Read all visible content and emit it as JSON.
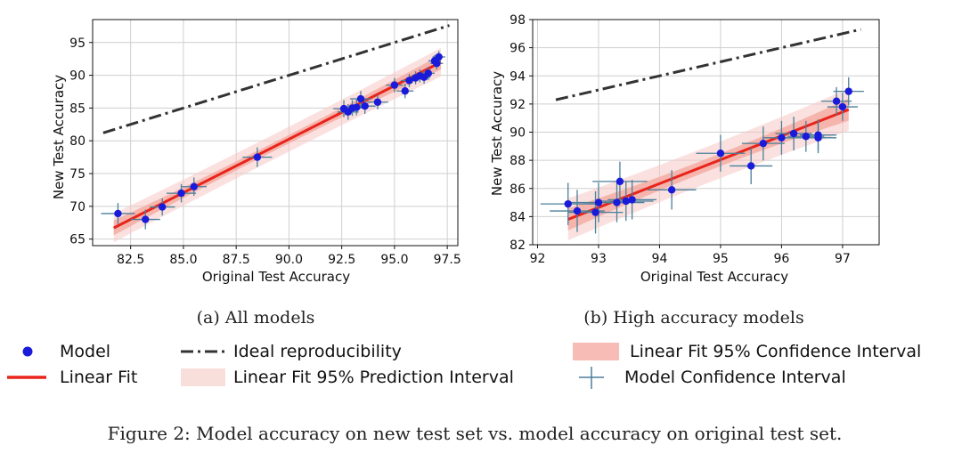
{
  "chart_data": [
    {
      "type": "scatter",
      "caption": "(a) All models",
      "xlabel": "Original Test Accuracy",
      "ylabel": "New Test Accuracy",
      "xlim": [
        80.7,
        98.0
      ],
      "ylim": [
        64.0,
        98.5
      ],
      "xticks": [
        "82.5",
        "85.0",
        "87.5",
        "90.0",
        "92.5",
        "95.0",
        "97.5"
      ],
      "yticks": [
        "65",
        "70",
        "75",
        "80",
        "85",
        "90",
        "95"
      ],
      "grid": true,
      "ideal_line": {
        "x": [
          81.2,
          97.6
        ],
        "y": [
          81.2,
          97.6
        ]
      },
      "linear_fit": {
        "x": [
          81.7,
          97.2
        ],
        "y": [
          66.7,
          92.0
        ]
      },
      "points": [
        {
          "x": 81.9,
          "y": 68.9,
          "xerr": 0.8,
          "yerr": 1.6
        },
        {
          "x": 83.2,
          "y": 68.0,
          "xerr": 0.7,
          "yerr": 1.5
        },
        {
          "x": 84.0,
          "y": 69.9,
          "xerr": 0.6,
          "yerr": 1.3
        },
        {
          "x": 84.9,
          "y": 72.0,
          "xerr": 0.7,
          "yerr": 1.4
        },
        {
          "x": 85.5,
          "y": 73.0,
          "xerr": 0.6,
          "yerr": 1.4
        },
        {
          "x": 88.5,
          "y": 77.5,
          "xerr": 0.7,
          "yerr": 1.5
        },
        {
          "x": 92.6,
          "y": 84.9,
          "xerr": 0.5,
          "yerr": 1.3
        },
        {
          "x": 92.8,
          "y": 84.4,
          "xerr": 0.5,
          "yerr": 1.2
        },
        {
          "x": 93.0,
          "y": 85.0,
          "xerr": 0.5,
          "yerr": 1.2
        },
        {
          "x": 93.2,
          "y": 85.1,
          "xerr": 0.5,
          "yerr": 1.2
        },
        {
          "x": 93.4,
          "y": 86.4,
          "xerr": 0.5,
          "yerr": 1.2
        },
        {
          "x": 93.6,
          "y": 85.3,
          "xerr": 0.5,
          "yerr": 1.2
        },
        {
          "x": 94.2,
          "y": 85.9,
          "xerr": 0.5,
          "yerr": 1.1
        },
        {
          "x": 95.0,
          "y": 88.5,
          "xerr": 0.4,
          "yerr": 1.1
        },
        {
          "x": 95.5,
          "y": 87.6,
          "xerr": 0.4,
          "yerr": 1.1
        },
        {
          "x": 95.7,
          "y": 89.2,
          "xerr": 0.4,
          "yerr": 1.0
        },
        {
          "x": 96.0,
          "y": 89.6,
          "xerr": 0.4,
          "yerr": 1.0
        },
        {
          "x": 96.2,
          "y": 89.9,
          "xerr": 0.4,
          "yerr": 1.0
        },
        {
          "x": 96.4,
          "y": 89.7,
          "xerr": 0.3,
          "yerr": 1.0
        },
        {
          "x": 96.6,
          "y": 90.3,
          "xerr": 0.3,
          "yerr": 1.0
        },
        {
          "x": 96.9,
          "y": 92.2,
          "xerr": 0.3,
          "yerr": 0.9
        },
        {
          "x": 97.0,
          "y": 91.8,
          "xerr": 0.3,
          "yerr": 0.9
        },
        {
          "x": 97.1,
          "y": 92.8,
          "xerr": 0.3,
          "yerr": 0.9
        }
      ]
    },
    {
      "type": "scatter",
      "caption": "(b) High accuracy models",
      "xlabel": "Original Test Accuracy",
      "ylabel": "New Test Accuracy",
      "xlim": [
        91.92,
        97.6
      ],
      "ylim": [
        82.0,
        98.0
      ],
      "xticks": [
        "92",
        "93",
        "94",
        "95",
        "96",
        "97"
      ],
      "yticks": [
        "82",
        "84",
        "86",
        "88",
        "90",
        "92",
        "94",
        "96",
        "98"
      ],
      "grid": true,
      "ideal_line": {
        "x": [
          92.3,
          97.3
        ],
        "y": [
          92.3,
          97.3
        ]
      },
      "linear_fit": {
        "x": [
          92.5,
          97.1
        ],
        "y": [
          83.8,
          91.6
        ]
      },
      "points": [
        {
          "x": 92.5,
          "y": 84.9,
          "xerr": 0.45,
          "yerr": 1.5
        },
        {
          "x": 92.65,
          "y": 84.4,
          "xerr": 0.45,
          "yerr": 1.5
        },
        {
          "x": 92.95,
          "y": 84.3,
          "xerr": 0.45,
          "yerr": 1.5
        },
        {
          "x": 93.0,
          "y": 85.0,
          "xerr": 0.45,
          "yerr": 1.4
        },
        {
          "x": 93.3,
          "y": 85.0,
          "xerr": 0.45,
          "yerr": 1.4
        },
        {
          "x": 93.35,
          "y": 86.5,
          "xerr": 0.45,
          "yerr": 1.4
        },
        {
          "x": 93.45,
          "y": 85.1,
          "xerr": 0.45,
          "yerr": 1.4
        },
        {
          "x": 93.55,
          "y": 85.2,
          "xerr": 0.4,
          "yerr": 1.4
        },
        {
          "x": 94.2,
          "y": 85.9,
          "xerr": 0.4,
          "yerr": 1.4
        },
        {
          "x": 95.0,
          "y": 88.5,
          "xerr": 0.4,
          "yerr": 1.3
        },
        {
          "x": 95.5,
          "y": 87.6,
          "xerr": 0.35,
          "yerr": 1.3
        },
        {
          "x": 95.7,
          "y": 89.2,
          "xerr": 0.35,
          "yerr": 1.2
        },
        {
          "x": 96.0,
          "y": 89.6,
          "xerr": 0.3,
          "yerr": 1.2
        },
        {
          "x": 96.2,
          "y": 89.9,
          "xerr": 0.3,
          "yerr": 1.2
        },
        {
          "x": 96.4,
          "y": 89.7,
          "xerr": 0.3,
          "yerr": 1.1
        },
        {
          "x": 96.6,
          "y": 89.6,
          "xerr": 0.3,
          "yerr": 1.1
        },
        {
          "x": 96.6,
          "y": 89.8,
          "xerr": 0.3,
          "yerr": 1.1
        },
        {
          "x": 96.9,
          "y": 92.2,
          "xerr": 0.25,
          "yerr": 1.0
        },
        {
          "x": 97.0,
          "y": 91.8,
          "xerr": 0.25,
          "yerr": 1.0
        },
        {
          "x": 97.1,
          "y": 92.9,
          "xerr": 0.25,
          "yerr": 1.0
        }
      ]
    }
  ],
  "legend": {
    "model": "Model",
    "ideal": "Ideal reproducibility",
    "ci": "Linear Fit 95% Confidence Interval",
    "fit": "Linear Fit",
    "pi": "Linear Fit 95% Prediction Interval",
    "model_ci": "Model Confidence Interval"
  },
  "figure_caption": "Figure 2: Model accuracy on new test set vs. model accuracy on original test set.",
  "colors": {
    "point": "#1a1adb",
    "errorbar": "#4a7f9a",
    "fit": "#e8241b",
    "ideal": "#333333",
    "prediction_band": "#f5c9c4",
    "confidence_band": "#f3a59c",
    "grid": "#cfcfcf"
  }
}
